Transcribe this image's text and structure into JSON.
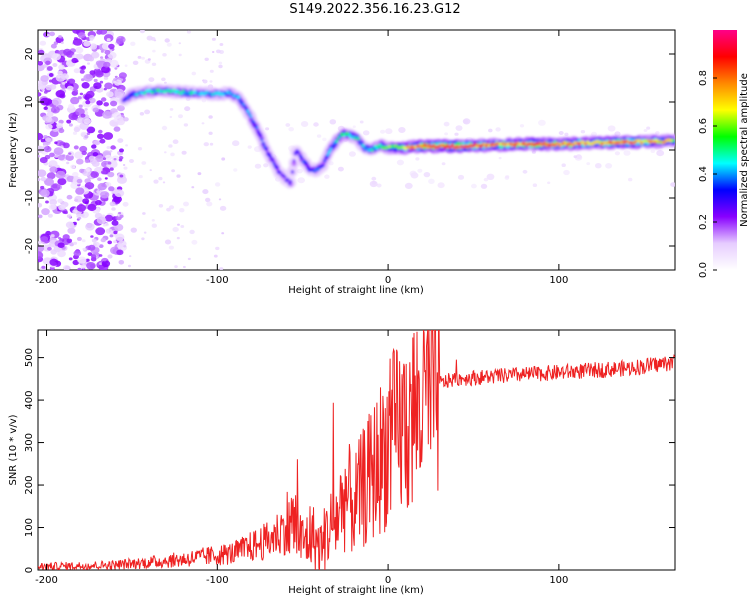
{
  "title": "S149.2022.356.16.23.G12",
  "chart_data": [
    {
      "type": "heatmap",
      "xlabel": "Height of straight line (km)",
      "ylabel": "Frequency (Hz)",
      "xlim": [
        -205,
        168
      ],
      "ylim": [
        -25,
        25
      ],
      "xticks": [
        -200,
        -100,
        0,
        100
      ],
      "yticks": [
        -20,
        -10,
        0,
        10,
        20
      ],
      "grid": false,
      "colorbar": {
        "label": "Normalized spectral amplitude",
        "range": [
          0,
          1
        ],
        "ticks": [
          0.0,
          0.2,
          0.4,
          0.6,
          0.8
        ],
        "colors": [
          "#ffffff",
          "#e6ccff",
          "#8800ff",
          "#0000ff",
          "#00ffff",
          "#00ff00",
          "#ffff00",
          "#ff8800",
          "#ff0000",
          "#ff0088"
        ]
      },
      "ridge": {
        "x": [
          -155,
          -150,
          -140,
          -130,
          -120,
          -110,
          -100,
          -93,
          -88,
          -84,
          -80,
          -76,
          -72,
          -68,
          -64,
          -60,
          -57,
          -54,
          -50,
          -46,
          -42,
          -38,
          -34,
          -30,
          -26,
          -22,
          -18,
          -14,
          -10,
          -5,
          0,
          10,
          20,
          40,
          60,
          80,
          100,
          120,
          140,
          160,
          168
        ],
        "frequency": [
          10.5,
          11.5,
          12.2,
          12.3,
          12,
          11.8,
          11.7,
          11.8,
          11,
          9,
          6.5,
          4,
          0.5,
          -2,
          -4.5,
          -6,
          -7,
          0,
          -2,
          -4,
          -4.2,
          -3,
          0,
          2,
          3.5,
          3,
          2.5,
          0.5,
          0,
          1,
          0.5,
          0.5,
          0.8,
          0.8,
          1,
          1.3,
          1.2,
          1.5,
          1.6,
          1.8,
          2
        ],
        "amplitude": [
          0.3,
          0.4,
          0.45,
          0.45,
          0.45,
          0.42,
          0.42,
          0.42,
          0.4,
          0.38,
          0.38,
          0.36,
          0.34,
          0.32,
          0.3,
          0.28,
          0.25,
          0.3,
          0.35,
          0.35,
          0.35,
          0.35,
          0.4,
          0.45,
          0.5,
          0.5,
          0.45,
          0.4,
          0.45,
          0.5,
          0.55,
          0.7,
          0.85,
          0.9,
          0.75,
          0.8,
          0.8,
          0.75,
          0.8,
          0.7,
          0.6
        ]
      }
    },
    {
      "type": "line",
      "xlabel": "Height of straight line (km)",
      "ylabel": "SNR (10 * v/v)",
      "xlim": [
        -205,
        168
      ],
      "ylim": [
        0,
        565
      ],
      "xticks": [
        -200,
        -100,
        0,
        100
      ],
      "yticks": [
        0,
        100,
        200,
        300,
        400,
        500
      ],
      "grid": false,
      "series": [
        {
          "color": "#ee2222",
          "x": [
            -205,
            -180,
            -160,
            -140,
            -120,
            -100,
            -90,
            -80,
            -70,
            -60,
            -55,
            -50,
            -45,
            -40,
            -35,
            -30,
            -25,
            -20,
            -15,
            -10,
            -5,
            0,
            5,
            10,
            15,
            20,
            25,
            30,
            40,
            60,
            80,
            100,
            120,
            140,
            160,
            168
          ],
          "y": [
            8,
            10,
            12,
            18,
            25,
            35,
            40,
            55,
            70,
            100,
            110,
            60,
            85,
            50,
            95,
            120,
            180,
            150,
            190,
            220,
            260,
            300,
            320,
            340,
            370,
            400,
            420,
            440,
            450,
            455,
            460,
            465,
            470,
            475,
            485,
            490
          ]
        }
      ]
    }
  ]
}
